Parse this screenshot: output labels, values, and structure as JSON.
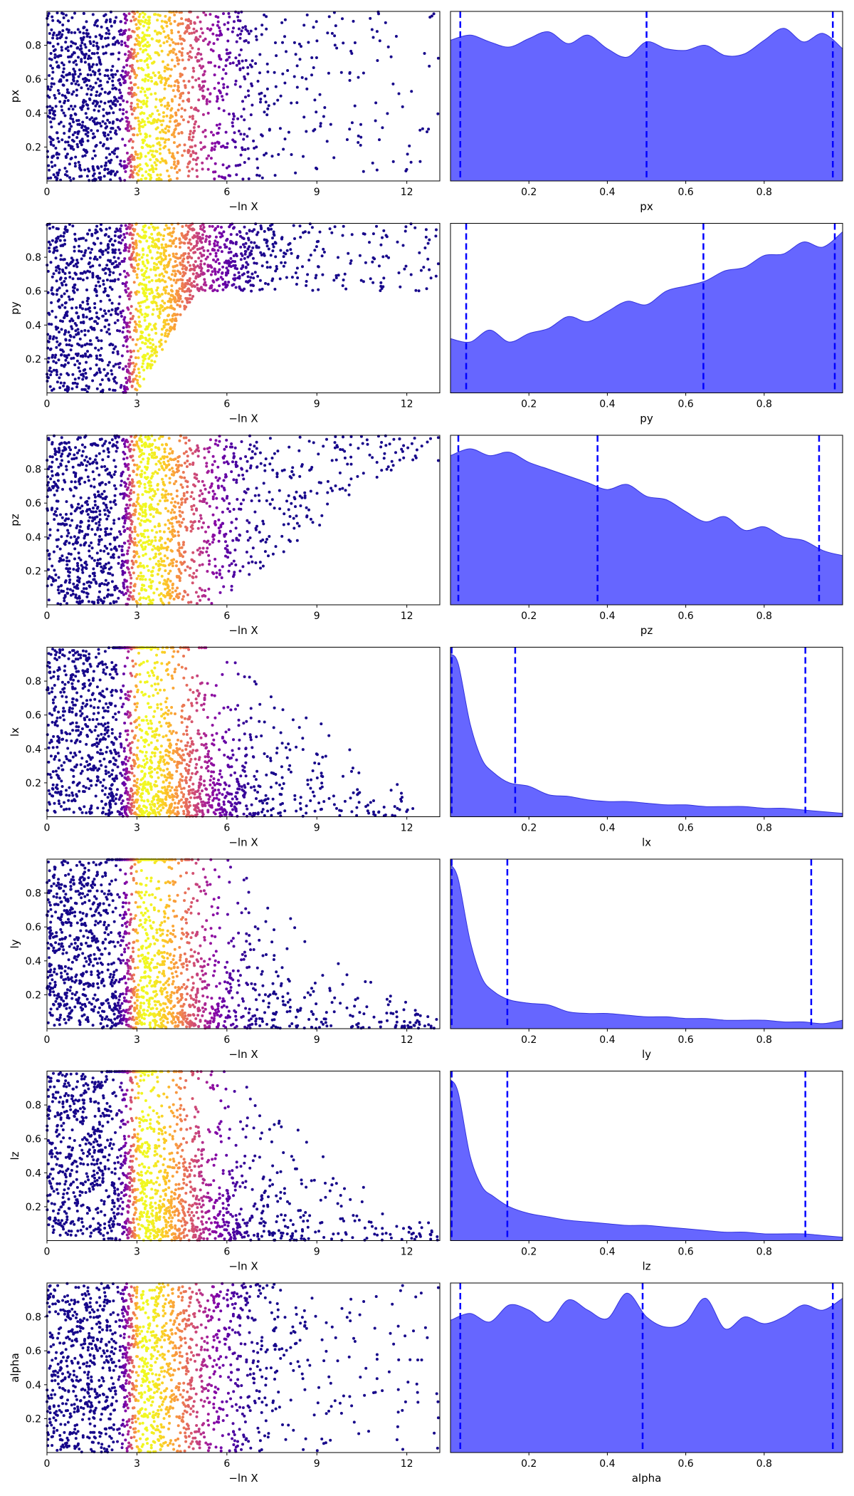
{
  "figure": {
    "type": "nested-sampling-trace-plot"
  },
  "colors": {
    "kde_fill": "#6666ff",
    "kde_edge": "#3333dd",
    "quantile_line": "#0000ff",
    "scatter_cmap": "plasma",
    "axes": "#000000",
    "background": "#ffffff"
  },
  "chart_data": [
    {
      "type": "scatter",
      "xlabel": "−ln X",
      "ylabel": "px",
      "xlim": [
        0,
        13.1
      ],
      "ylim": [
        0,
        1
      ],
      "xticks": [
        "0",
        "3",
        "6",
        "9",
        "12"
      ],
      "yticks": [
        "0.2",
        "0.4",
        "0.6",
        "0.8"
      ],
      "color_peak_x": 3.2,
      "point_count": 1800,
      "shape": "uniform-funnel",
      "max_x": 13.1
    },
    {
      "type": "area",
      "xlabel": "px",
      "xlim": [
        0,
        1
      ],
      "xticks": [
        "0.2",
        "0.4",
        "0.6",
        "0.8"
      ],
      "quantiles": [
        0.025,
        0.5,
        0.975
      ],
      "x": [
        0,
        0.05,
        0.1,
        0.15,
        0.2,
        0.25,
        0.3,
        0.35,
        0.4,
        0.45,
        0.5,
        0.55,
        0.6,
        0.65,
        0.7,
        0.75,
        0.8,
        0.85,
        0.9,
        0.95,
        1
      ],
      "y": [
        0.83,
        0.86,
        0.82,
        0.79,
        0.84,
        0.88,
        0.81,
        0.86,
        0.78,
        0.73,
        0.82,
        0.78,
        0.77,
        0.8,
        0.74,
        0.75,
        0.83,
        0.9,
        0.82,
        0.87,
        0.78
      ]
    },
    {
      "type": "scatter",
      "xlabel": "−ln X",
      "ylabel": "py",
      "xlim": [
        0,
        13.1
      ],
      "ylim": [
        0,
        1
      ],
      "xticks": [
        "0",
        "3",
        "6",
        "9",
        "12"
      ],
      "yticks": [
        "0.2",
        "0.4",
        "0.6",
        "0.8"
      ],
      "color_peak_x": 3.2,
      "point_count": 1800,
      "shape": "converge-high",
      "max_x": 13.1
    },
    {
      "type": "area",
      "xlabel": "py",
      "xlim": [
        0,
        1
      ],
      "xticks": [
        "0.2",
        "0.4",
        "0.6",
        "0.8"
      ],
      "quantiles": [
        0.04,
        0.645,
        0.98
      ],
      "x": [
        0,
        0.05,
        0.1,
        0.15,
        0.2,
        0.25,
        0.3,
        0.35,
        0.4,
        0.45,
        0.5,
        0.55,
        0.6,
        0.65,
        0.7,
        0.75,
        0.8,
        0.85,
        0.9,
        0.95,
        1
      ],
      "y": [
        0.32,
        0.3,
        0.37,
        0.3,
        0.35,
        0.38,
        0.45,
        0.42,
        0.48,
        0.54,
        0.52,
        0.6,
        0.63,
        0.66,
        0.72,
        0.74,
        0.81,
        0.82,
        0.89,
        0.86,
        0.95
      ]
    },
    {
      "type": "scatter",
      "xlabel": "−ln X",
      "ylabel": "pz",
      "xlim": [
        0,
        13.1
      ],
      "ylim": [
        0,
        1
      ],
      "xticks": [
        "0",
        "3",
        "6",
        "9",
        "12"
      ],
      "yticks": [
        "0.2",
        "0.4",
        "0.6",
        "0.8"
      ],
      "color_peak_x": 3.2,
      "point_count": 1800,
      "shape": "wedge-up",
      "max_x": 13.1
    },
    {
      "type": "area",
      "xlabel": "pz",
      "xlim": [
        0,
        1
      ],
      "xticks": [
        "0.2",
        "0.4",
        "0.6",
        "0.8"
      ],
      "quantiles": [
        0.02,
        0.375,
        0.94
      ],
      "x": [
        0,
        0.05,
        0.1,
        0.15,
        0.2,
        0.25,
        0.3,
        0.35,
        0.4,
        0.45,
        0.5,
        0.55,
        0.6,
        0.65,
        0.7,
        0.75,
        0.8,
        0.85,
        0.9,
        0.95,
        1
      ],
      "y": [
        0.88,
        0.92,
        0.88,
        0.9,
        0.84,
        0.8,
        0.76,
        0.72,
        0.68,
        0.71,
        0.64,
        0.62,
        0.55,
        0.49,
        0.52,
        0.44,
        0.46,
        0.4,
        0.38,
        0.32,
        0.29
      ]
    },
    {
      "type": "scatter",
      "xlabel": "−ln X",
      "ylabel": "lx",
      "xlim": [
        0,
        13.1
      ],
      "ylim": [
        0,
        1
      ],
      "xticks": [
        "0",
        "3",
        "6",
        "9",
        "12"
      ],
      "yticks": [
        "0.2",
        "0.4",
        "0.6",
        "0.8"
      ],
      "color_peak_x": 3.2,
      "point_count": 1800,
      "shape": "converge-low",
      "max_x": 12.5
    },
    {
      "type": "area",
      "xlabel": "lx",
      "xlim": [
        0,
        1
      ],
      "xticks": [
        "0.2",
        "0.4",
        "0.6",
        "0.8"
      ],
      "quantiles": [
        0.003,
        0.165,
        0.905
      ],
      "x": [
        0,
        0.02,
        0.05,
        0.08,
        0.11,
        0.15,
        0.2,
        0.25,
        0.3,
        0.35,
        0.4,
        0.45,
        0.5,
        0.55,
        0.6,
        0.65,
        0.7,
        0.75,
        0.8,
        0.85,
        0.9,
        0.95,
        1
      ],
      "y": [
        0.96,
        0.9,
        0.55,
        0.34,
        0.26,
        0.2,
        0.18,
        0.13,
        0.12,
        0.1,
        0.09,
        0.09,
        0.08,
        0.07,
        0.07,
        0.06,
        0.06,
        0.06,
        0.05,
        0.05,
        0.04,
        0.03,
        0.02
      ]
    },
    {
      "type": "scatter",
      "xlabel": "−ln X",
      "ylabel": "ly",
      "xlim": [
        0,
        13.1
      ],
      "ylim": [
        0,
        1
      ],
      "xticks": [
        "0",
        "3",
        "6",
        "9",
        "12"
      ],
      "yticks": [
        "0.2",
        "0.4",
        "0.6",
        "0.8"
      ],
      "color_peak_x": 3.2,
      "point_count": 1800,
      "shape": "converge-low",
      "max_x": 13.1
    },
    {
      "type": "area",
      "xlabel": "ly",
      "xlim": [
        0,
        1
      ],
      "xticks": [
        "0.2",
        "0.4",
        "0.6",
        "0.8"
      ],
      "quantiles": [
        0.003,
        0.145,
        0.92
      ],
      "x": [
        0,
        0.02,
        0.05,
        0.08,
        0.11,
        0.15,
        0.2,
        0.25,
        0.3,
        0.35,
        0.4,
        0.45,
        0.5,
        0.55,
        0.6,
        0.65,
        0.7,
        0.75,
        0.8,
        0.85,
        0.9,
        0.95,
        1
      ],
      "y": [
        0.97,
        0.88,
        0.52,
        0.3,
        0.22,
        0.17,
        0.15,
        0.14,
        0.1,
        0.09,
        0.09,
        0.08,
        0.07,
        0.07,
        0.06,
        0.06,
        0.05,
        0.05,
        0.05,
        0.04,
        0.04,
        0.03,
        0.05
      ]
    },
    {
      "type": "scatter",
      "xlabel": "−ln X",
      "ylabel": "lz",
      "xlim": [
        0,
        13.1
      ],
      "ylim": [
        0,
        1
      ],
      "xticks": [
        "0",
        "3",
        "6",
        "9",
        "12"
      ],
      "yticks": [
        "0.2",
        "0.4",
        "0.6",
        "0.8"
      ],
      "color_peak_x": 3.2,
      "point_count": 1800,
      "shape": "converge-low",
      "max_x": 13.1
    },
    {
      "type": "area",
      "xlabel": "lz",
      "xlim": [
        0,
        1
      ],
      "xticks": [
        "0.2",
        "0.4",
        "0.6",
        "0.8"
      ],
      "quantiles": [
        0.003,
        0.145,
        0.905
      ],
      "x": [
        0,
        0.02,
        0.05,
        0.08,
        0.11,
        0.15,
        0.2,
        0.25,
        0.3,
        0.35,
        0.4,
        0.45,
        0.5,
        0.55,
        0.6,
        0.65,
        0.7,
        0.75,
        0.8,
        0.85,
        0.9,
        0.95,
        1
      ],
      "y": [
        0.95,
        0.87,
        0.5,
        0.32,
        0.26,
        0.2,
        0.16,
        0.14,
        0.12,
        0.11,
        0.1,
        0.09,
        0.09,
        0.08,
        0.07,
        0.06,
        0.05,
        0.05,
        0.04,
        0.04,
        0.04,
        0.03,
        0.02
      ]
    },
    {
      "type": "scatter",
      "xlabel": "−ln X",
      "ylabel": "alpha",
      "xlim": [
        0,
        13.1
      ],
      "ylim": [
        0,
        1
      ],
      "xticks": [
        "0",
        "3",
        "6",
        "9",
        "12"
      ],
      "yticks": [
        "0.2",
        "0.4",
        "0.6",
        "0.8"
      ],
      "color_peak_x": 3.2,
      "point_count": 1800,
      "shape": "uniform",
      "max_x": 13.1
    },
    {
      "type": "area",
      "xlabel": "alpha",
      "xlim": [
        0,
        1
      ],
      "xticks": [
        "0.2",
        "0.4",
        "0.6",
        "0.8"
      ],
      "quantiles": [
        0.025,
        0.49,
        0.975
      ],
      "x": [
        0,
        0.05,
        0.1,
        0.15,
        0.2,
        0.25,
        0.3,
        0.35,
        0.4,
        0.45,
        0.5,
        0.55,
        0.6,
        0.65,
        0.7,
        0.75,
        0.8,
        0.85,
        0.9,
        0.95,
        1
      ],
      "y": [
        0.78,
        0.82,
        0.77,
        0.87,
        0.84,
        0.77,
        0.9,
        0.84,
        0.79,
        0.94,
        0.8,
        0.74,
        0.77,
        0.91,
        0.73,
        0.8,
        0.76,
        0.8,
        0.87,
        0.84,
        0.91
      ]
    }
  ]
}
